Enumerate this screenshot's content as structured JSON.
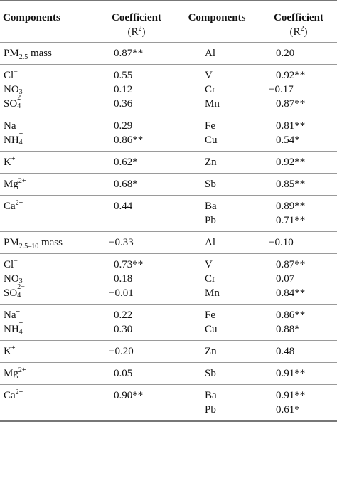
{
  "header": {
    "col1": "Components",
    "col2_title": "Coefficient",
    "col2_sub": "(R",
    "col2_sup": "2",
    "col2_close": ")",
    "col3": "Components",
    "col4_title": "Coefficient",
    "col4_sub": "(R",
    "col4_sup": "2",
    "col4_close": ")"
  },
  "sections": [
    {
      "groups": [
        {
          "rows": [
            {
              "c1": "PM",
              "c1_sub": "2.5",
              "c1_tail": " mass",
              "c2": "0.87**",
              "c3": "Al",
              "c4": "0.20"
            }
          ]
        },
        {
          "rows": [
            {
              "c1": "Cl",
              "c1_sup": "−",
              "c2": "0.55",
              "c3": "V",
              "c4": "0.92**"
            },
            {
              "c1": "NO",
              "c1_stk_sup": "−",
              "c1_stk_sub": "3",
              "c2": "0.12",
              "c3": "Cr",
              "c4": "−0.17"
            },
            {
              "c1": "SO",
              "c1_stk_sup": "2−",
              "c1_stk_sub": "4",
              "c2": "0.36",
              "c3": "Mn",
              "c4": "0.87**"
            }
          ]
        },
        {
          "rows": [
            {
              "c1": "Na",
              "c1_sup": "+",
              "c2": "0.29",
              "c3": "Fe",
              "c4": "0.81**"
            },
            {
              "c1": "NH",
              "c1_stk_sup": "+",
              "c1_stk_sub": "4",
              "c2": "0.86**",
              "c3": "Cu",
              "c4": "0.54*"
            }
          ]
        },
        {
          "rows": [
            {
              "c1": "K",
              "c1_sup": "+",
              "c2": "0.62*",
              "c3": "Zn",
              "c4": "0.92**"
            }
          ]
        },
        {
          "rows": [
            {
              "c1": "Mg",
              "c1_sup": "2+",
              "c2": "0.68*",
              "c3": "Sb",
              "c4": "0.85**"
            }
          ]
        },
        {
          "rows": [
            {
              "c1": "Ca",
              "c1_sup": "2+",
              "c2": "0.44",
              "c3": "Ba",
              "c4": "0.89**"
            },
            {
              "c1": "",
              "c2": "",
              "c3": "Pb",
              "c4": "0.71**"
            }
          ]
        }
      ]
    },
    {
      "groups": [
        {
          "rows": [
            {
              "c1": "PM",
              "c1_sub": "2.5–10",
              "c1_tail": " mass",
              "c2": "−0.33",
              "c3": "Al",
              "c4": "−0.10"
            }
          ]
        },
        {
          "rows": [
            {
              "c1": "Cl",
              "c1_sup": "−",
              "c2": "0.73**",
              "c3": "V",
              "c4": "0.87**"
            },
            {
              "c1": "NO",
              "c1_stk_sup": "−",
              "c1_stk_sub": "3",
              "c2": "0.18",
              "c3": "Cr",
              "c4": "0.07"
            },
            {
              "c1": "SO",
              "c1_stk_sup": "2−",
              "c1_stk_sub": "4",
              "c2": "−0.01",
              "c3": "Mn",
              "c4": "0.84**"
            }
          ]
        },
        {
          "rows": [
            {
              "c1": "Na",
              "c1_sup": "+",
              "c2": "0.22",
              "c3": "Fe",
              "c4": "0.86**"
            },
            {
              "c1": "NH",
              "c1_stk_sup": "+",
              "c1_stk_sub": "4",
              "c2": "0.30",
              "c3": "Cu",
              "c4": "0.88*"
            }
          ]
        },
        {
          "rows": [
            {
              "c1": "K",
              "c1_sup": "+",
              "c2": "−0.20",
              "c3": "Zn",
              "c4": "0.48"
            }
          ]
        },
        {
          "rows": [
            {
              "c1": "Mg",
              "c1_sup": "2+",
              "c2": "0.05",
              "c3": "Sb",
              "c4": "0.91**"
            }
          ]
        },
        {
          "rows": [
            {
              "c1": "Ca",
              "c1_sup": "2+",
              "c2": "0.90**",
              "c3": "Ba",
              "c4": "0.91**"
            },
            {
              "c1": "",
              "c2": "",
              "c3": "Pb",
              "c4": "0.61*"
            }
          ]
        }
      ]
    }
  ]
}
